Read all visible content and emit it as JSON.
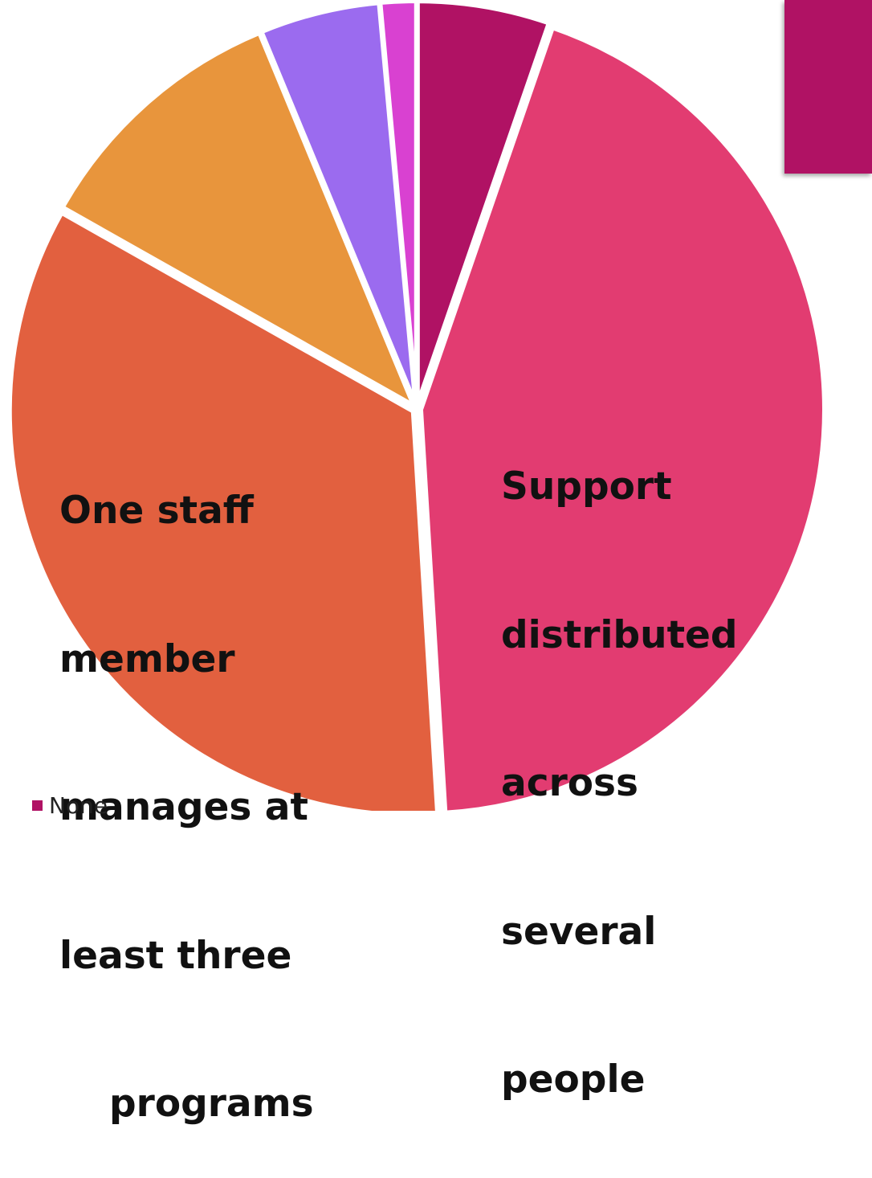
{
  "chart_data": {
    "type": "pie",
    "categories": [
      "None",
      "Support distributed across several people",
      "One staff member manages at least three programs",
      "",
      "",
      ""
    ],
    "values": [
      5.5,
      45.5,
      35.5,
      11.0,
      5.0,
      1.5
    ],
    "colors": [
      "#b01264",
      "#e23c71",
      "#e2603f",
      "#e8953c",
      "#9b6bef",
      "#d941d1"
    ],
    "slice_labels": {
      "support": [
        "Support",
        "distributed",
        "across",
        "several",
        "people"
      ],
      "one_staff": [
        "One staff",
        "member",
        "manages at",
        "least three",
        "programs"
      ]
    },
    "legend": [
      {
        "label": "None",
        "color": "#b01264"
      }
    ],
    "legend_position": "bottom-left",
    "start_angle": "top, clockwise"
  },
  "decor": {
    "accent_color": "#b01264"
  }
}
